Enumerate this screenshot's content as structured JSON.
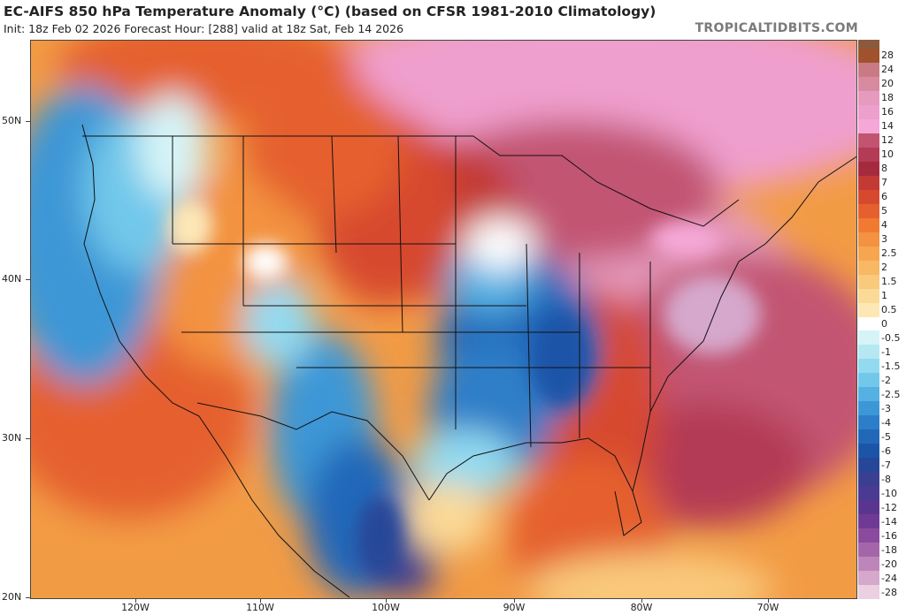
{
  "header": {
    "title": "EC-AIFS 850 hPa Temperature Anomaly (°C) (based on CFSR 1981-2010 Climatology)",
    "subtitle": "Init: 18z Feb 02 2026   Forecast Hour: [288]   valid at 18z Sat, Feb 14 2026",
    "brand": "TROPICALTIDBITS.COM"
  },
  "axes": {
    "lat_labels": [
      "50N",
      "40N",
      "30N",
      "20N"
    ],
    "lon_labels": [
      "120W",
      "110W",
      "100W",
      "90W",
      "80W",
      "70W"
    ]
  },
  "colorbar": {
    "labels": [
      "28",
      "24",
      "20",
      "18",
      "16",
      "14",
      "12",
      "10",
      "8",
      "7",
      "6",
      "5",
      "4",
      "3",
      "2.5",
      "2",
      "1.5",
      "1",
      "0.5",
      "0",
      "-0.5",
      "-1",
      "-1.5",
      "-2",
      "-2.5",
      "-3",
      "-4",
      "-5",
      "-6",
      "-7",
      "-8",
      "-10",
      "-12",
      "-14",
      "-16",
      "-18",
      "-20",
      "-24",
      "-28"
    ],
    "colors": [
      "#a0522d",
      "#c97a84",
      "#d88aa0",
      "#e69bbe",
      "#ef9fcd",
      "#f5a8d8",
      "#c25472",
      "#b43b55",
      "#a62a3e",
      "#c33a35",
      "#d7492f",
      "#e5602e",
      "#f07a32",
      "#f39240",
      "#f6a650",
      "#f8b864",
      "#f9c97c",
      "#fbd996",
      "#fde8b5",
      "#ffffff",
      "#d6f4f7",
      "#b5e8f3",
      "#93daf0",
      "#71c8ea",
      "#55b1e2",
      "#3c97d6",
      "#2d7ec8",
      "#2268b9",
      "#1c55a8",
      "#264697",
      "#3a3f92",
      "#4b3a91",
      "#5a3590",
      "#6e3a96",
      "#8a4a9e",
      "#a566a9",
      "#bd86bb",
      "#d5a8cc",
      "#ead0e1"
    ]
  }
}
